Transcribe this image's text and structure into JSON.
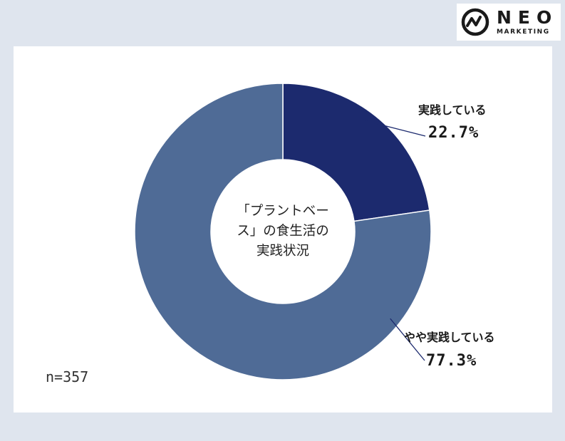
{
  "logo": {
    "name": "NEO",
    "sub": "MARKETING"
  },
  "chart_data": {
    "type": "pie",
    "title_lines": [
      "「プラントベー",
      "ス」の食生活の",
      "実践状況"
    ],
    "sample_size": "n=357",
    "slices": [
      {
        "label": "実践している",
        "value": 22.7,
        "display": "22.7%",
        "color": "#1c2a6e"
      },
      {
        "label": "やや実践している",
        "value": 77.3,
        "display": "77.3%",
        "color": "#4f6b96"
      }
    ]
  }
}
